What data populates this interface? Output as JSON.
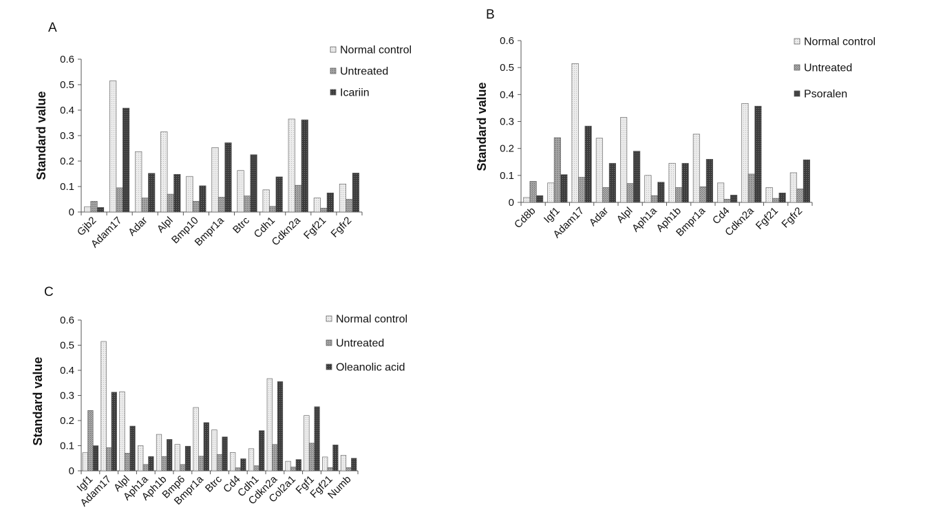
{
  "colors": {
    "normal_fill": "#ececec",
    "untreated_fill": "#9a9a9a",
    "treated_fill": "#3a3a3a",
    "edge": "#555555"
  },
  "chart_data": [
    {
      "type": "bar",
      "panel": "A",
      "ylabel": "Standard value",
      "ylim": [
        0,
        0.6
      ],
      "yticks": [
        "0",
        "0.1",
        "0.2",
        "0.3",
        "0.4",
        "0.5",
        "0.6"
      ],
      "legend_position": "top-right",
      "categories": [
        "Gjb2",
        "Adam17",
        "Adar",
        "Alpl",
        "Bmp10",
        "Bmpr1a",
        "Btrc",
        "Cdh1",
        "Cdkn2a",
        "Fgf21",
        "Fgfr2"
      ],
      "series": [
        {
          "name": "Normal control",
          "values": [
            0.02,
            0.515,
            0.237,
            0.315,
            0.14,
            0.253,
            0.163,
            0.087,
            0.365,
            0.055,
            0.11
          ]
        },
        {
          "name": "Untreated",
          "values": [
            0.042,
            0.095,
            0.055,
            0.07,
            0.042,
            0.058,
            0.063,
            0.022,
            0.105,
            0.015,
            0.05
          ]
        },
        {
          "name": "Icariin",
          "values": [
            0.018,
            0.408,
            0.152,
            0.148,
            0.103,
            0.272,
            0.225,
            0.138,
            0.362,
            0.075,
            0.153
          ]
        }
      ]
    },
    {
      "type": "bar",
      "panel": "B",
      "ylabel": "Standard value",
      "ylim": [
        0,
        0.6
      ],
      "yticks": [
        "0",
        "0.1",
        "0.2",
        "0.3",
        "0.4",
        "0.5",
        "0.6"
      ],
      "legend_position": "top-right",
      "categories": [
        "Cd8b",
        "Igf1",
        "Adam17",
        "Adar",
        "Alpl",
        "Aph1a",
        "Aph1b",
        "Bmpr1a",
        "Cd4",
        "Cdkn2a",
        "Fgf21",
        "Fgfr2"
      ],
      "series": [
        {
          "name": "Normal control",
          "values": [
            0.018,
            0.072,
            0.515,
            0.238,
            0.315,
            0.1,
            0.145,
            0.253,
            0.072,
            0.367,
            0.055,
            0.11
          ]
        },
        {
          "name": "Untreated",
          "values": [
            0.078,
            0.24,
            0.093,
            0.055,
            0.07,
            0.025,
            0.055,
            0.058,
            0.012,
            0.105,
            0.015,
            0.05
          ]
        },
        {
          "name": "Psoralen",
          "values": [
            0.025,
            0.103,
            0.283,
            0.145,
            0.19,
            0.075,
            0.145,
            0.16,
            0.027,
            0.357,
            0.035,
            0.158
          ]
        }
      ]
    },
    {
      "type": "bar",
      "panel": "C",
      "ylabel": "Standard value",
      "ylim": [
        0,
        0.6
      ],
      "yticks": [
        "0",
        "0.1",
        "0.2",
        "0.3",
        "0.4",
        "0.5",
        "0.6"
      ],
      "legend_position": "top-right",
      "categories": [
        "Igf1",
        "Adam17",
        "Alpl",
        "Aph1a",
        "Aph1b",
        "Bmp6",
        "Bmpr1a",
        "Btrc",
        "Cd4",
        "Cdh1",
        "Cdkn2a",
        "Col2a1",
        "Fgf1",
        "Fgf21",
        "Numb"
      ],
      "series": [
        {
          "name": "Normal control",
          "values": [
            0.072,
            0.515,
            0.315,
            0.1,
            0.145,
            0.105,
            0.252,
            0.163,
            0.073,
            0.088,
            0.367,
            0.038,
            0.22,
            0.055,
            0.062
          ]
        },
        {
          "name": "Untreated",
          "values": [
            0.24,
            0.092,
            0.07,
            0.025,
            0.057,
            0.025,
            0.058,
            0.065,
            0.012,
            0.02,
            0.105,
            0.015,
            0.11,
            0.013,
            0.013
          ]
        },
        {
          "name": "Oleanolic acid",
          "values": [
            0.1,
            0.313,
            0.178,
            0.057,
            0.125,
            0.098,
            0.192,
            0.135,
            0.048,
            0.16,
            0.355,
            0.045,
            0.255,
            0.103,
            0.05
          ]
        }
      ]
    }
  ]
}
